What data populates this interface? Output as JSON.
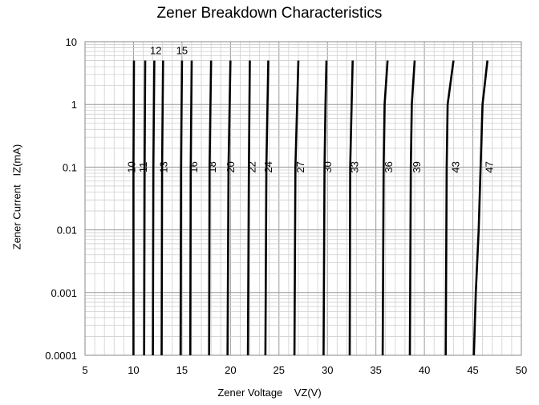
{
  "chart_data": {
    "type": "line",
    "title": "Zener Breakdown Characteristics",
    "xlabel": "Zener Voltage    VZ(V)",
    "ylabel": "Zener Current   IZ(mA)",
    "xlim": [
      5,
      50
    ],
    "ylim": [
      0.0001,
      10
    ],
    "yscale": "log",
    "x_ticks": [
      "5",
      "10",
      "15",
      "20",
      "25",
      "30",
      "35",
      "40",
      "45",
      "50"
    ],
    "y_ticks": [
      "0.0001",
      "0.001",
      "0.01",
      "0.1",
      "1",
      "10"
    ],
    "grid": true,
    "series_color": "#000000",
    "series": [
      {
        "name": "10",
        "points": [
          [
            10.0,
            0.0001
          ],
          [
            10.0,
            0.1
          ],
          [
            10.05,
            5
          ]
        ]
      },
      {
        "name": "11",
        "points": [
          [
            11.1,
            0.0001
          ],
          [
            11.15,
            0.1
          ],
          [
            11.2,
            5
          ]
        ]
      },
      {
        "name": "12",
        "points": [
          [
            12.0,
            0.0001
          ],
          [
            12.05,
            0.1
          ],
          [
            12.15,
            5
          ]
        ]
      },
      {
        "name": "13",
        "points": [
          [
            12.9,
            0.0001
          ],
          [
            12.95,
            0.1
          ],
          [
            13.05,
            5
          ]
        ]
      },
      {
        "name": "15",
        "points": [
          [
            14.85,
            0.0001
          ],
          [
            14.9,
            0.1
          ],
          [
            15.0,
            5
          ]
        ]
      },
      {
        "name": "16",
        "points": [
          [
            15.85,
            0.0001
          ],
          [
            15.9,
            0.1
          ],
          [
            16.0,
            5
          ]
        ]
      },
      {
        "name": "18",
        "points": [
          [
            17.8,
            0.0001
          ],
          [
            17.85,
            0.1
          ],
          [
            18.0,
            5
          ]
        ]
      },
      {
        "name": "20",
        "points": [
          [
            19.7,
            0.0001
          ],
          [
            19.8,
            0.1
          ],
          [
            20.0,
            5
          ]
        ]
      },
      {
        "name": "22",
        "points": [
          [
            21.8,
            0.0001
          ],
          [
            21.9,
            0.1
          ],
          [
            22.0,
            5
          ]
        ]
      },
      {
        "name": "24",
        "points": [
          [
            23.6,
            0.0001
          ],
          [
            23.7,
            0.1
          ],
          [
            23.9,
            5
          ]
        ]
      },
      {
        "name": "27",
        "points": [
          [
            26.6,
            0.0001
          ],
          [
            26.7,
            0.1
          ],
          [
            27.0,
            5
          ]
        ]
      },
      {
        "name": "30",
        "points": [
          [
            29.6,
            0.0001
          ],
          [
            29.7,
            0.1
          ],
          [
            29.8,
            1
          ],
          [
            29.9,
            5
          ]
        ]
      },
      {
        "name": "33",
        "points": [
          [
            32.3,
            0.0001
          ],
          [
            32.35,
            0.1
          ],
          [
            32.5,
            1
          ],
          [
            32.6,
            5
          ]
        ]
      },
      {
        "name": "36",
        "points": [
          [
            35.7,
            0.0001
          ],
          [
            35.8,
            0.1
          ],
          [
            35.9,
            1
          ],
          [
            36.2,
            5
          ]
        ]
      },
      {
        "name": "39",
        "points": [
          [
            38.5,
            0.0001
          ],
          [
            38.6,
            0.1
          ],
          [
            38.7,
            1
          ],
          [
            39.0,
            5
          ]
        ]
      },
      {
        "name": "43",
        "points": [
          [
            42.2,
            0.0001
          ],
          [
            42.3,
            0.1
          ],
          [
            42.4,
            1
          ],
          [
            43.0,
            5
          ]
        ]
      },
      {
        "name": "47",
        "points": [
          [
            45.1,
            0.0001
          ],
          [
            45.3,
            0.001
          ],
          [
            45.6,
            0.01
          ],
          [
            45.8,
            0.1
          ],
          [
            46.0,
            1
          ],
          [
            46.5,
            5
          ]
        ]
      }
    ],
    "curve_labels": [
      {
        "text": "10",
        "x": 9.9,
        "y": 0.1,
        "rotated": true
      },
      {
        "text": "11",
        "x": 11.1,
        "y": 0.1,
        "rotated": true
      },
      {
        "text": "12",
        "x": 12.3,
        "y": 7,
        "rotated": false
      },
      {
        "text": "13",
        "x": 13.2,
        "y": 0.1,
        "rotated": true
      },
      {
        "text": "15",
        "x": 15.0,
        "y": 7,
        "rotated": false
      },
      {
        "text": "16",
        "x": 16.3,
        "y": 0.1,
        "rotated": true
      },
      {
        "text": "18",
        "x": 18.2,
        "y": 0.1,
        "rotated": true
      },
      {
        "text": "20",
        "x": 20.1,
        "y": 0.1,
        "rotated": true
      },
      {
        "text": "22",
        "x": 22.3,
        "y": 0.1,
        "rotated": true
      },
      {
        "text": "24",
        "x": 24.0,
        "y": 0.1,
        "rotated": true
      },
      {
        "text": "27",
        "x": 27.3,
        "y": 0.1,
        "rotated": true
      },
      {
        "text": "30",
        "x": 30.1,
        "y": 0.1,
        "rotated": true
      },
      {
        "text": "33",
        "x": 32.9,
        "y": 0.1,
        "rotated": true
      },
      {
        "text": "36",
        "x": 36.4,
        "y": 0.1,
        "rotated": true
      },
      {
        "text": "39",
        "x": 39.3,
        "y": 0.1,
        "rotated": true
      },
      {
        "text": "43",
        "x": 43.3,
        "y": 0.1,
        "rotated": true
      },
      {
        "text": "47",
        "x": 46.8,
        "y": 0.1,
        "rotated": true
      }
    ]
  }
}
